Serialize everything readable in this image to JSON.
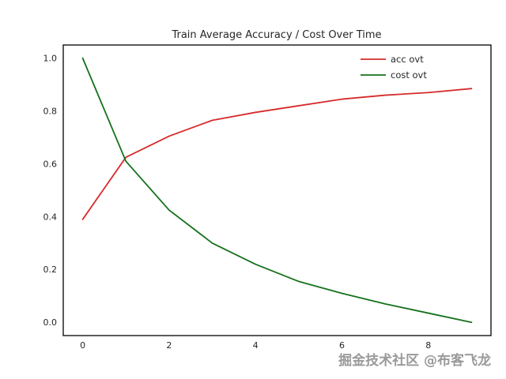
{
  "figure": {
    "background": "#ffffff",
    "watermark": "掘金技术社区 @布客飞龙"
  },
  "chart_data": {
    "type": "line",
    "title": "Train Average Accuracy / Cost Over Time",
    "xlabel": "",
    "ylabel": "",
    "x": [
      0,
      1,
      2,
      3,
      4,
      5,
      6,
      7,
      8,
      9
    ],
    "series": [
      {
        "name": "acc ovt",
        "color": "#d62b2b",
        "values": [
          0.39,
          0.625,
          0.705,
          0.765,
          0.795,
          0.82,
          0.845,
          0.86,
          0.87,
          0.885
        ]
      },
      {
        "name": "cost ovt",
        "color": "#15711a",
        "values": [
          1.0,
          0.61,
          0.425,
          0.3,
          0.22,
          0.155,
          0.11,
          0.07,
          0.035,
          0.0
        ]
      }
    ],
    "xlim": [
      -0.45,
      9.45
    ],
    "ylim": [
      -0.05,
      1.05
    ],
    "xticks": {
      "values": [
        0,
        2,
        4,
        6,
        8
      ],
      "labels": [
        "0",
        "2",
        "4",
        "6",
        "8"
      ]
    },
    "yticks": {
      "values": [
        0.0,
        0.2,
        0.4,
        0.6,
        0.8,
        1.0
      ],
      "labels": [
        "0.0",
        "0.2",
        "0.4",
        "0.6",
        "0.8",
        "1.0"
      ]
    },
    "grid": false,
    "legend_position": "upper right"
  }
}
